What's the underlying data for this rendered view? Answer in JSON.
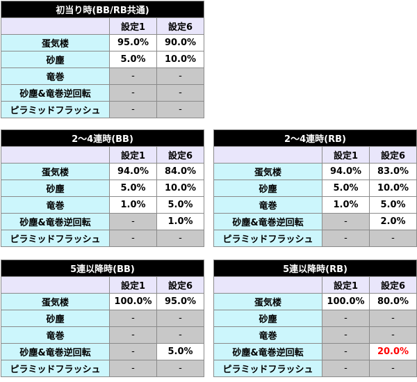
{
  "tables": [
    {
      "title": "初当り時(BB/RB共通)",
      "headers": [
        "設定1",
        "設定6"
      ],
      "rows": [
        {
          "name": "蛋気楼",
          "v1": "95.0%",
          "v6": "90.0%"
        },
        {
          "name": "砂塵",
          "v1": "5.0%",
          "v6": "10.0%"
        },
        {
          "name": "竜巻",
          "v1": "-",
          "v6": "-"
        },
        {
          "name": "砂塵&竜巻逆回転",
          "v1": "-",
          "v6": "-"
        },
        {
          "name": "ピラミッドフラッシュ",
          "v1": "-",
          "v6": "-"
        }
      ]
    },
    {
      "title": "2～4連時(BB)",
      "headers": [
        "設定1",
        "設定6"
      ],
      "rows": [
        {
          "name": "蛋気楼",
          "v1": "94.0%",
          "v6": "84.0%"
        },
        {
          "name": "砂塵",
          "v1": "5.0%",
          "v6": "10.0%"
        },
        {
          "name": "竜巻",
          "v1": "1.0%",
          "v6": "5.0%"
        },
        {
          "name": "砂塵&竜巻逆回転",
          "v1": "-",
          "v6": "1.0%"
        },
        {
          "name": "ピラミッドフラッシュ",
          "v1": "-",
          "v6": "-"
        }
      ]
    },
    {
      "title": "2～4連時(RB)",
      "headers": [
        "設定1",
        "設定6"
      ],
      "rows": [
        {
          "name": "蛋気楼",
          "v1": "94.0%",
          "v6": "83.0%"
        },
        {
          "name": "砂塵",
          "v1": "5.0%",
          "v6": "10.0%"
        },
        {
          "name": "竜巻",
          "v1": "1.0%",
          "v6": "5.0%"
        },
        {
          "name": "砂塵&竜巻逆回転",
          "v1": "-",
          "v6": "2.0%"
        },
        {
          "name": "ピラミッドフラッシュ",
          "v1": "-",
          "v6": "-"
        }
      ]
    },
    {
      "title": "5連以降時(BB)",
      "headers": [
        "設定1",
        "設定6"
      ],
      "rows": [
        {
          "name": "蛋気楼",
          "v1": "100.0%",
          "v6": "95.0%"
        },
        {
          "name": "砂塵",
          "v1": "-",
          "v6": "-"
        },
        {
          "name": "竜巻",
          "v1": "-",
          "v6": "-"
        },
        {
          "name": "砂塵&竜巻逆回転",
          "v1": "-",
          "v6": "5.0%"
        },
        {
          "name": "ピラミッドフラッシュ",
          "v1": "-",
          "v6": "-"
        }
      ]
    },
    {
      "title": "5連以降時(RB)",
      "headers": [
        "設定1",
        "設定6"
      ],
      "rows": [
        {
          "name": "蛋気楼",
          "v1": "100.0%",
          "v6": "80.0%"
        },
        {
          "name": "砂塵",
          "v1": "-",
          "v6": "-"
        },
        {
          "name": "竜巻",
          "v1": "-",
          "v6": "-"
        },
        {
          "name": "砂塵&竜巻逆回転",
          "v1": "-",
          "v6": "20.0%"
        },
        {
          "name": "ピラミッドフラッシュ",
          "v1": "-",
          "v6": "-"
        }
      ]
    }
  ],
  "highlight_color": "#ff0000",
  "highlight_cell": "5連以降時(RB) / 砂塵&竜巻逆回転 / 設定6"
}
